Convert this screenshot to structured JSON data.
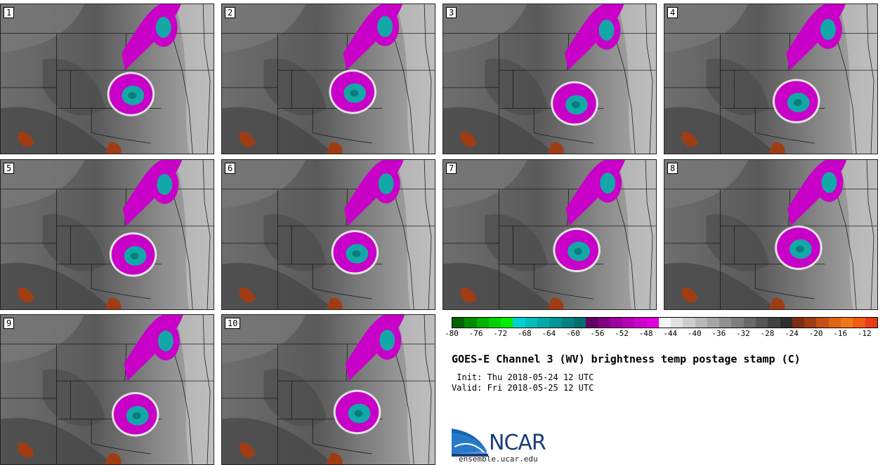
{
  "panels": [
    {
      "label": "1"
    },
    {
      "label": "2"
    },
    {
      "label": "3"
    },
    {
      "label": "4"
    },
    {
      "label": "5"
    },
    {
      "label": "6"
    },
    {
      "label": "7"
    },
    {
      "label": "8"
    },
    {
      "label": "9"
    },
    {
      "label": "10"
    }
  ],
  "colorbar": {
    "colors": [
      "#006400",
      "#008c00",
      "#00b400",
      "#00d200",
      "#00ee00",
      "#00d2d2",
      "#00bebe",
      "#00aaaa",
      "#009696",
      "#008282",
      "#006e6e",
      "#640064",
      "#820082",
      "#a000a0",
      "#b400b4",
      "#cd00cd",
      "#e100e1",
      "#f5f5f5",
      "#e1e1e1",
      "#cdcdcd",
      "#b9b9b9",
      "#a5a5a5",
      "#919191",
      "#7d7d7d",
      "#696969",
      "#555555",
      "#414141",
      "#2d2d2d",
      "#7d2d14",
      "#a03c14",
      "#c35014",
      "#e16414",
      "#f07814",
      "#f05a14",
      "#e63c14"
    ],
    "ticks": [
      "-80",
      "-76",
      "-72",
      "-68",
      "-64",
      "-60",
      "-56",
      "-52",
      "-48",
      "-44",
      "-40",
      "-36",
      "-32",
      "-28",
      "-24",
      "-20",
      "-16",
      "-12"
    ]
  },
  "title": "GOES-E Channel 3 (WV) brightness temp postage stamp (C)",
  "init": " Init: Thu 2018-05-24 12 UTC",
  "valid": "Valid: Fri 2018-05-25 12 UTC",
  "logo_text": "NCAR",
  "site": "ensemble.ucar.edu"
}
